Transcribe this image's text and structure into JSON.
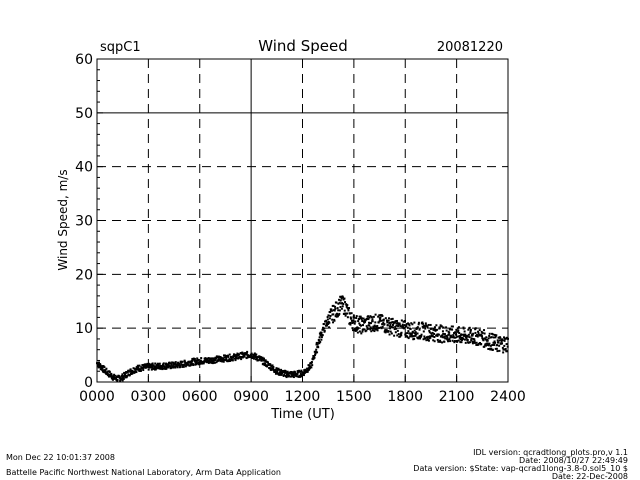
{
  "chart_data": {
    "type": "scatter",
    "title": "Wind Speed",
    "site": "sqpC1",
    "date": "20081220",
    "xlabel": "Time (UT)",
    "ylabel": "Wind Speed, m/s",
    "xlim": [
      0,
      2400
    ],
    "ylim": [
      0,
      60
    ],
    "x_ticks": [
      "0000",
      "0300",
      "0600",
      "0900",
      "1200",
      "1500",
      "1800",
      "2100",
      "2400"
    ],
    "y_ticks": [
      "0",
      "10",
      "20",
      "30",
      "40",
      "50",
      "60"
    ],
    "grid": "dashed",
    "series": [
      {
        "name": "Wind Speed",
        "x_hours": [
          0.0,
          0.25,
          0.5,
          0.75,
          1.0,
          1.25,
          1.5,
          1.75,
          2.0,
          2.25,
          2.5,
          2.75,
          3.0,
          3.5,
          4.0,
          4.5,
          5.0,
          5.5,
          6.0,
          6.5,
          7.0,
          7.5,
          8.0,
          8.5,
          9.0,
          9.5,
          10.0,
          10.5,
          11.0,
          11.5,
          12.0,
          12.5,
          12.75,
          13.0,
          13.25,
          13.5,
          13.75,
          14.0,
          14.25,
          14.5,
          14.75,
          15.0,
          15.5,
          16.0,
          16.5,
          17.0,
          17.5,
          18.0,
          18.5,
          19.0,
          19.5,
          20.0,
          20.5,
          21.0,
          21.5,
          22.0,
          22.5,
          23.0,
          23.5,
          24.0
        ],
        "values": [
          3.5,
          2.8,
          2.0,
          1.4,
          0.8,
          0.6,
          0.9,
          1.5,
          2.0,
          2.4,
          2.6,
          2.7,
          2.8,
          2.9,
          3.0,
          3.1,
          3.3,
          3.7,
          3.9,
          4.0,
          4.2,
          4.4,
          4.6,
          4.9,
          5.1,
          4.3,
          3.2,
          2.0,
          1.5,
          1.4,
          1.6,
          3.0,
          5.5,
          8.0,
          10.0,
          11.5,
          12.5,
          13.5,
          14.5,
          14.0,
          12.0,
          11.0,
          10.5,
          11.0,
          11.0,
          10.5,
          10.0,
          9.8,
          9.5,
          9.5,
          9.2,
          9.0,
          8.8,
          8.7,
          8.5,
          8.5,
          8.2,
          7.5,
          7.0,
          7.2
        ]
      }
    ]
  },
  "footer": {
    "run_time": "Mon Dec 22 10:01:37 2008",
    "institution": "Battelle Pacific Northwest National Laboratory, Arm Data Application",
    "idl_version": "IDL version: qcradtlong_plots.pro,v 1.1",
    "idl_date": "Date: 2008/10/27 22:49:49",
    "data_version": "Data version: $State: vap-qcrad1long-3.8-0.sol5_10 $",
    "data_date": "Date: 22-Dec-2008"
  }
}
